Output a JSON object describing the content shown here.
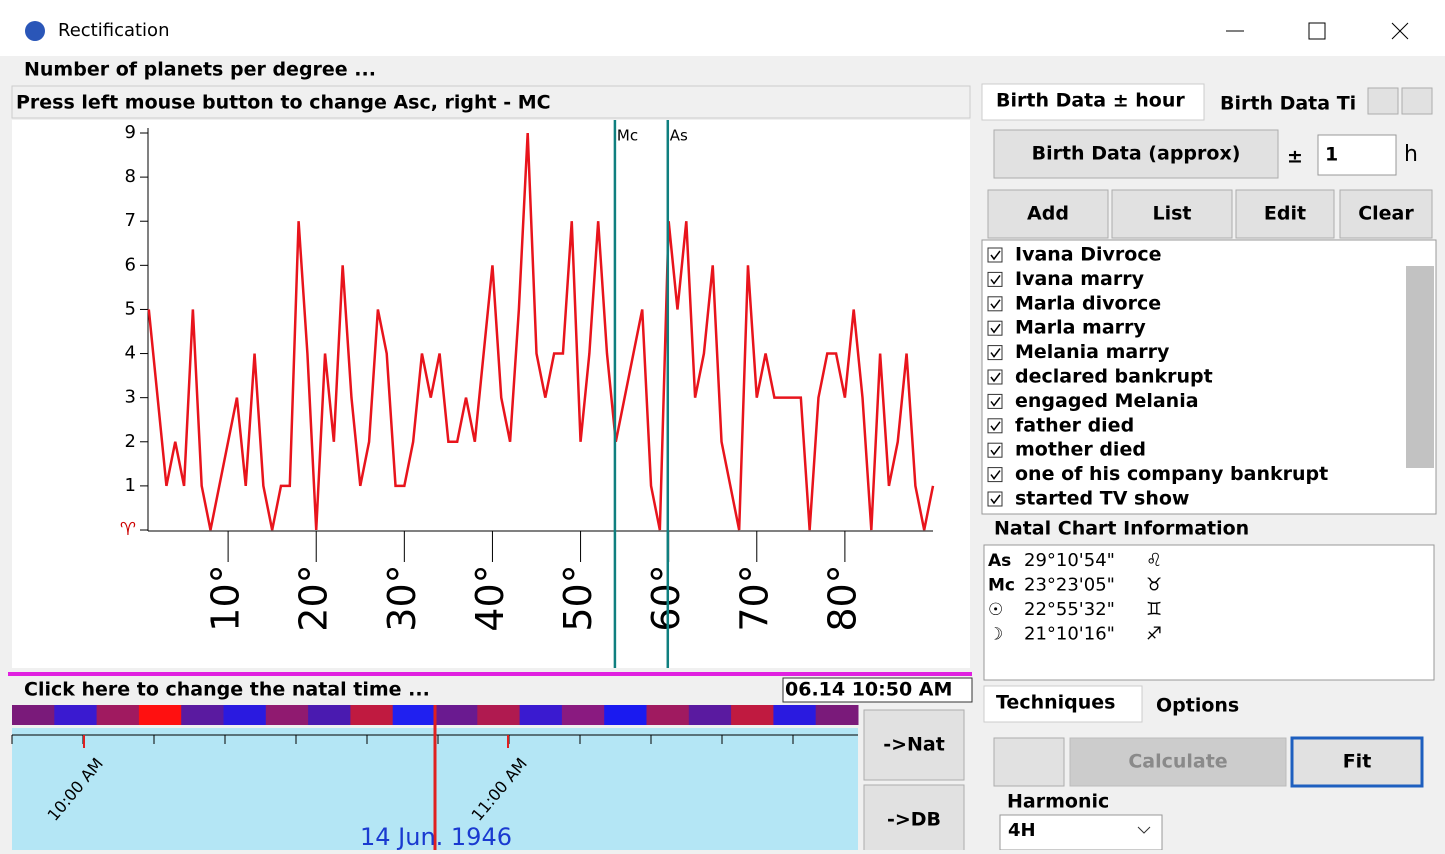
{
  "window": {
    "title": "Rectification"
  },
  "chart_data": {
    "type": "line",
    "title": "Number of planets per degree ...",
    "subtitle": "Press left mouse button to change Asc, right - MC",
    "x": [
      1,
      2,
      3,
      4,
      5,
      6,
      7,
      8,
      9,
      10,
      11,
      12,
      13,
      14,
      15,
      16,
      17,
      18,
      19,
      20,
      21,
      22,
      23,
      24,
      25,
      26,
      27,
      28,
      29,
      30,
      31,
      32,
      33,
      34,
      35,
      36,
      37,
      38,
      39,
      40,
      41,
      42,
      43,
      44,
      45,
      46,
      47,
      48,
      49,
      50,
      51,
      52,
      53,
      54,
      55,
      56,
      57,
      58,
      59,
      60,
      61,
      62,
      63,
      64,
      65,
      66,
      67,
      68,
      69,
      70,
      71,
      72,
      73,
      74,
      75,
      76,
      77,
      78,
      79,
      80,
      81,
      82,
      83,
      84,
      85,
      86,
      87,
      88,
      89,
      90
    ],
    "values": [
      5,
      3,
      1,
      2,
      1,
      5,
      1,
      0,
      1,
      2,
      3,
      1,
      4,
      1,
      0,
      1,
      1,
      7,
      4,
      0,
      4,
      2,
      6,
      3,
      1,
      2,
      5,
      4,
      1,
      1,
      2,
      4,
      3,
      4,
      2,
      2,
      3,
      2,
      4,
      6,
      3,
      2,
      5,
      9,
      4,
      3,
      4,
      4,
      7,
      2,
      4,
      7,
      4,
      2,
      3,
      4,
      5,
      1,
      0,
      7,
      5,
      7,
      3,
      4,
      6,
      2,
      1,
      0,
      6,
      3,
      4,
      3,
      3,
      3,
      3,
      0,
      3,
      4,
      4,
      3,
      5,
      3,
      0,
      4,
      1,
      2,
      4,
      1,
      0,
      1
    ],
    "color": "#e8141c",
    "xlim": [
      0,
      90
    ],
    "ylim": [
      0,
      9
    ],
    "xticks": [
      {
        "value": 10,
        "label": "10°"
      },
      {
        "value": 20,
        "label": "20°"
      },
      {
        "value": 30,
        "label": "30°"
      },
      {
        "value": 40,
        "label": "40°"
      },
      {
        "value": 50,
        "label": "50°"
      },
      {
        "value": 60,
        "label": "60°"
      },
      {
        "value": 70,
        "label": "70°"
      },
      {
        "value": 80,
        "label": "80°"
      }
    ],
    "yticks": [
      {
        "value": 0,
        "label": "♈"
      },
      1,
      2,
      3,
      4,
      5,
      6,
      7,
      8,
      9
    ],
    "markers": [
      {
        "label": "Mc",
        "x": 53.9
      },
      {
        "label": "As",
        "x": 59.9
      }
    ]
  },
  "timeline": {
    "prompt": "Click here to change the natal time ...",
    "current": "06.14 10:50 AM",
    "ticks": [
      "10:00 AM",
      "11:00 AM"
    ],
    "date": "14 Jun. 1946",
    "buttons": [
      "->Nat",
      "->DB"
    ]
  },
  "birth": {
    "tabs": [
      "Birth Data ± hour",
      "Birth Data Ti"
    ],
    "button": "Birth Data (approx)",
    "plus_minus": "±",
    "hours": "1",
    "unit": "h",
    "actions": [
      "Add",
      "List",
      "Edit",
      "Clear"
    ],
    "events": [
      "Ivana Divroce",
      "Ivana marry",
      "Marla divorce",
      "Marla marry",
      "Melania marry",
      "declared bankrupt",
      "engaged Melania",
      "father died",
      "mother died",
      "one of his company bankrupt",
      "started TV show"
    ]
  },
  "natal": {
    "title": "Natal Chart Information",
    "rows": [
      {
        "label": "As",
        "value": "29°10'54\"",
        "sign": "♌"
      },
      {
        "label": "Mc",
        "value": "23°23'05\"",
        "sign": "♉"
      },
      {
        "label": "☉",
        "value": "22°55'32\"",
        "sign": "♊"
      },
      {
        "label": "☽",
        "value": "21°10'16\"",
        "sign": "♐"
      }
    ]
  },
  "techniques": {
    "tabs": [
      "Techniques",
      "Options"
    ],
    "buttons": [
      "Calculate",
      "Fit"
    ],
    "harmonic_label": "Harmonic",
    "harmonic_value": "4H"
  }
}
